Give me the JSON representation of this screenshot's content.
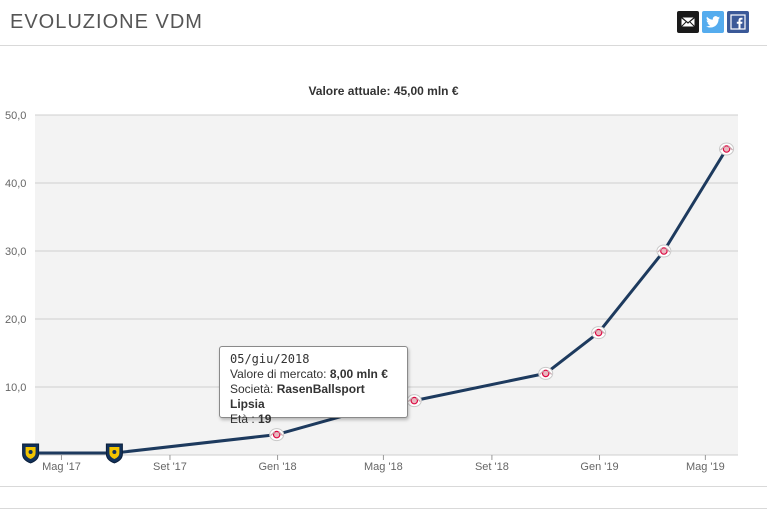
{
  "header": {
    "title": "EVOLUZIONE VDM",
    "share": [
      {
        "name": "mail",
        "icon": "mail-icon"
      },
      {
        "name": "twitter",
        "icon": "twitter-icon"
      },
      {
        "name": "facebook",
        "icon": "facebook-icon"
      }
    ]
  },
  "tooltip": {
    "date": "05/giu/2018",
    "value_label": "Valore di mercato:",
    "value": "8,00 mln €",
    "club_label": "Società:",
    "club": "RasenBallsport Lipsia",
    "age_label": "Età :",
    "age": "19"
  },
  "chart_data": {
    "type": "line",
    "title": "",
    "subtitle": "Valore attuale: 45,00 mln €",
    "xlabel": "",
    "ylabel": "",
    "ylim": [
      0,
      50
    ],
    "yticks": [
      "",
      "10,0",
      "20,0",
      "30,0",
      "40,0",
      "50,0"
    ],
    "xticks": [
      "Mag '17",
      "Set '17",
      "Gen '18",
      "Mag '18",
      "Set '18",
      "Gen '19",
      "Mag '19"
    ],
    "xtick_dates": [
      "2017-05-01",
      "2017-09-01",
      "2018-01-01",
      "2018-05-01",
      "2018-09-01",
      "2019-01-01",
      "2019-05-01"
    ],
    "xrange": [
      "2017-04-01",
      "2019-06-07"
    ],
    "grid": true,
    "legend": "none",
    "line_color": "#1d3a5e",
    "points": [
      {
        "x": "2017-03-27",
        "y": 0.3,
        "club": "Brøndby IF",
        "marker": "shield"
      },
      {
        "x": "2017-06-30",
        "y": 0.3,
        "club": "Brøndby IF",
        "marker": "shield"
      },
      {
        "x": "2017-12-31",
        "y": 3.0,
        "club": "RasenBallsport Lipsia",
        "marker": "rb"
      },
      {
        "x": "2018-04-20",
        "y": 7.0,
        "club": "RasenBallsport Lipsia",
        "marker": "rb-faded"
      },
      {
        "x": "2018-06-05",
        "y": 8.0,
        "club": "RasenBallsport Lipsia",
        "marker": "rb"
      },
      {
        "x": "2018-11-01",
        "y": 12.0,
        "club": "RasenBallsport Lipsia",
        "marker": "rb"
      },
      {
        "x": "2018-12-31",
        "y": 18.0,
        "club": "RasenBallsport Lipsia",
        "marker": "rb"
      },
      {
        "x": "2019-03-15",
        "y": 30.0,
        "club": "RasenBallsport Lipsia",
        "marker": "rb"
      },
      {
        "x": "2019-05-25",
        "y": 45.0,
        "club": "RasenBallsport Lipsia",
        "marker": "rb"
      }
    ]
  }
}
